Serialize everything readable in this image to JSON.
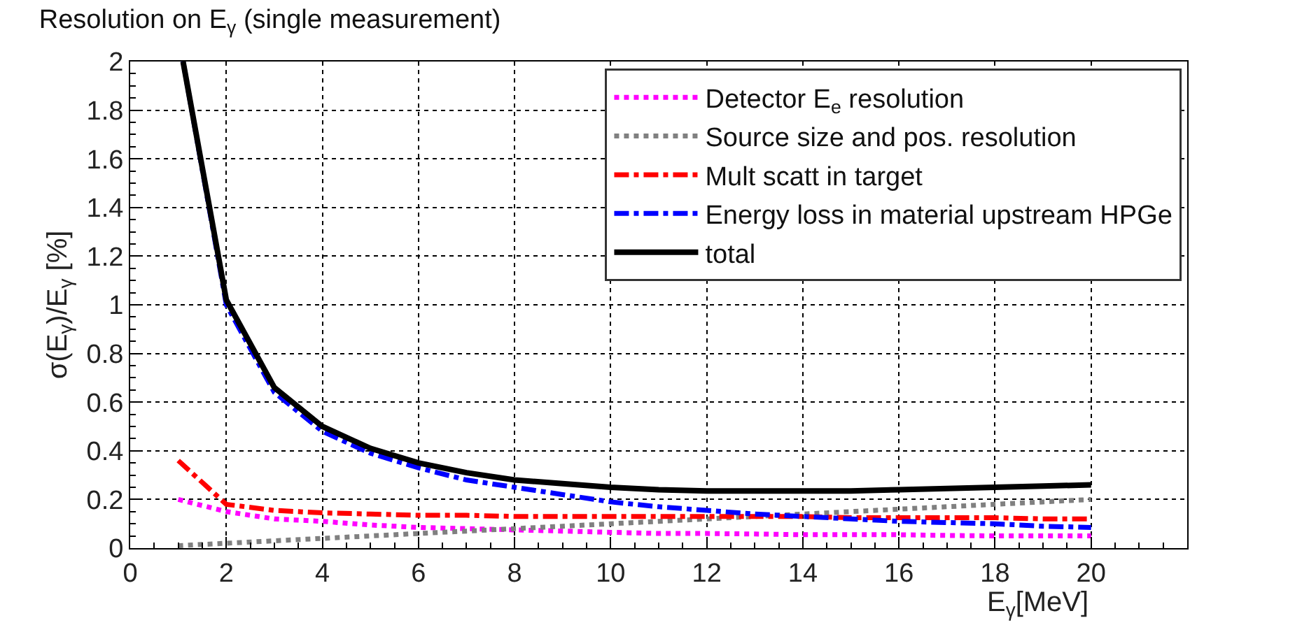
{
  "chart_data": {
    "type": "line",
    "title": "Resolution on E$_{γ}$ (single measurement)",
    "xlabel": "E$_{γ}$[MeV]",
    "ylabel": "σ(E$_{γ}$)/E$_{γ}$ [%]",
    "xlim": [
      0,
      22
    ],
    "xticks": [
      0,
      2,
      4,
      6,
      8,
      10,
      12,
      14,
      16,
      18,
      20
    ],
    "ylim": [
      0,
      2
    ],
    "yticks": [
      0,
      0.2,
      0.4,
      0.6,
      0.8,
      1,
      1.2,
      1.4,
      1.6,
      1.8,
      2
    ],
    "grid": true,
    "legend": "top right",
    "marker": "none",
    "x": [
      1,
      2,
      3,
      4,
      5,
      6,
      7,
      8,
      9,
      10,
      11,
      12,
      13,
      14,
      15,
      16,
      17,
      18,
      19,
      20
    ],
    "series": [
      {
        "name": "Detector E$_{e}$ resolution",
        "color": "#ff00ff",
        "line_style": "dotted",
        "values": [
          0.2,
          0.15,
          0.12,
          0.11,
          0.095,
          0.085,
          0.08,
          0.075,
          0.07,
          0.065,
          0.06,
          0.06,
          0.058,
          0.055,
          0.055,
          0.055,
          0.052,
          0.05,
          0.05,
          0.05
        ]
      },
      {
        "name": "Source size and pos. resolution",
        "color": "#808080",
        "line_style": "dotted",
        "values": [
          0.01,
          0.02,
          0.03,
          0.04,
          0.05,
          0.06,
          0.07,
          0.08,
          0.09,
          0.1,
          0.11,
          0.12,
          0.13,
          0.14,
          0.15,
          0.16,
          0.17,
          0.18,
          0.19,
          0.2
        ]
      },
      {
        "name": "Mult scatt in target",
        "color": "#ff0000",
        "line_style": "dashdot",
        "values": [
          0.36,
          0.18,
          0.155,
          0.145,
          0.14,
          0.135,
          0.135,
          0.13,
          0.13,
          0.13,
          0.13,
          0.13,
          0.13,
          0.13,
          0.125,
          0.125,
          0.125,
          0.125,
          0.12,
          0.12
        ]
      },
      {
        "name": "Energy loss in material upstream HPGe",
        "color": "#0000ff",
        "line_style": "dashdot",
        "x": [
          1.1,
          2,
          3,
          4,
          5,
          6,
          7,
          8,
          9,
          10,
          11,
          12,
          13,
          14,
          15,
          16,
          17,
          18,
          19,
          20
        ],
        "values": [
          2.0,
          1.0,
          0.64,
          0.48,
          0.39,
          0.33,
          0.28,
          0.25,
          0.22,
          0.19,
          0.17,
          0.155,
          0.14,
          0.13,
          0.12,
          0.11,
          0.105,
          0.1,
          0.09,
          0.085
        ]
      },
      {
        "name": "total",
        "color": "#000000",
        "line_style": "solid",
        "x": [
          1.1,
          2,
          3,
          4,
          5,
          6,
          7,
          8,
          9,
          10,
          11,
          12,
          13,
          14,
          15,
          16,
          17,
          18,
          19,
          20
        ],
        "values": [
          2.0,
          1.02,
          0.66,
          0.5,
          0.41,
          0.35,
          0.31,
          0.28,
          0.265,
          0.25,
          0.24,
          0.235,
          0.235,
          0.235,
          0.235,
          0.24,
          0.245,
          0.25,
          0.255,
          0.26
        ]
      }
    ]
  }
}
